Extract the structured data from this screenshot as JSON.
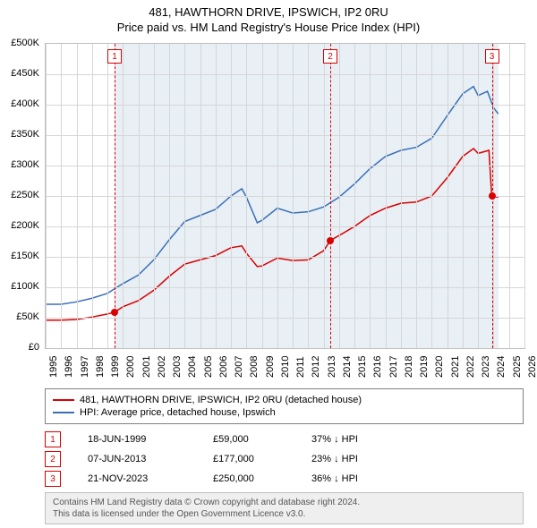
{
  "title": "481, HAWTHORN DRIVE, IPSWICH, IP2 0RU",
  "subtitle": "Price paid vs. HM Land Registry's House Price Index (HPI)",
  "chart": {
    "type": "line",
    "background_color": "#ffffff",
    "plot_border_color": "#bfbfbf",
    "shaded_bg_color": "#e8eff5",
    "shaded_x_start": 1999.46,
    "shaded_x_end": 2024.3,
    "xlim": [
      1995,
      2026
    ],
    "ylim": [
      0,
      500000
    ],
    "y_ticks": [
      0,
      50000,
      100000,
      150000,
      200000,
      250000,
      300000,
      350000,
      400000,
      450000,
      500000
    ],
    "y_tick_labels": [
      "£0",
      "£50K",
      "£100K",
      "£150K",
      "£200K",
      "£250K",
      "£300K",
      "£350K",
      "£400K",
      "£450K",
      "£500K"
    ],
    "x_ticks": [
      1995,
      1996,
      1997,
      1998,
      1999,
      2000,
      2001,
      2002,
      2003,
      2004,
      2005,
      2006,
      2007,
      2008,
      2009,
      2010,
      2011,
      2012,
      2013,
      2014,
      2015,
      2016,
      2017,
      2018,
      2019,
      2020,
      2021,
      2022,
      2023,
      2024,
      2025,
      2026
    ],
    "grid_color": "#d6d6d6",
    "series": [
      {
        "name": "481, HAWTHORN DRIVE, IPSWICH, IP2 0RU (detached house)",
        "color": "#d90000",
        "line_width": 1.5,
        "data": [
          [
            1995,
            46000
          ],
          [
            1996,
            46000
          ],
          [
            1997,
            47000
          ],
          [
            1998,
            51000
          ],
          [
            1999,
            56000
          ],
          [
            1999.46,
            59000
          ],
          [
            2000,
            68000
          ],
          [
            2001,
            78000
          ],
          [
            2002,
            95000
          ],
          [
            2003,
            118000
          ],
          [
            2004,
            138000
          ],
          [
            2005,
            145000
          ],
          [
            2006,
            152000
          ],
          [
            2007,
            165000
          ],
          [
            2007.7,
            168000
          ],
          [
            2008,
            156000
          ],
          [
            2008.7,
            134000
          ],
          [
            2009,
            135000
          ],
          [
            2010,
            148000
          ],
          [
            2011,
            144000
          ],
          [
            2012,
            145000
          ],
          [
            2013,
            160000
          ],
          [
            2013.43,
            177000
          ],
          [
            2014,
            185000
          ],
          [
            2015,
            200000
          ],
          [
            2016,
            218000
          ],
          [
            2017,
            230000
          ],
          [
            2018,
            238000
          ],
          [
            2019,
            240000
          ],
          [
            2020,
            250000
          ],
          [
            2021,
            280000
          ],
          [
            2022,
            315000
          ],
          [
            2022.7,
            328000
          ],
          [
            2023,
            320000
          ],
          [
            2023.7,
            325000
          ],
          [
            2023.88,
            250000
          ],
          [
            2024.3,
            248000
          ]
        ]
      },
      {
        "name": "HPI: Average price, detached house, Ipswich",
        "color": "#3a6fb7",
        "line_width": 1.5,
        "data": [
          [
            1995,
            72000
          ],
          [
            1996,
            72000
          ],
          [
            1997,
            76000
          ],
          [
            1998,
            82000
          ],
          [
            1999,
            90000
          ],
          [
            2000,
            106000
          ],
          [
            2001,
            120000
          ],
          [
            2002,
            145000
          ],
          [
            2003,
            178000
          ],
          [
            2004,
            208000
          ],
          [
            2005,
            218000
          ],
          [
            2006,
            228000
          ],
          [
            2007,
            250000
          ],
          [
            2007.7,
            262000
          ],
          [
            2008,
            248000
          ],
          [
            2008.7,
            206000
          ],
          [
            2009,
            210000
          ],
          [
            2010,
            230000
          ],
          [
            2011,
            222000
          ],
          [
            2012,
            224000
          ],
          [
            2013,
            232000
          ],
          [
            2014,
            248000
          ],
          [
            2015,
            270000
          ],
          [
            2016,
            295000
          ],
          [
            2017,
            315000
          ],
          [
            2018,
            325000
          ],
          [
            2019,
            330000
          ],
          [
            2020,
            345000
          ],
          [
            2021,
            382000
          ],
          [
            2022,
            418000
          ],
          [
            2022.7,
            430000
          ],
          [
            2023,
            415000
          ],
          [
            2023.6,
            422000
          ],
          [
            2024,
            395000
          ],
          [
            2024.3,
            385000
          ]
        ]
      }
    ],
    "markers": [
      {
        "n": "1",
        "x": 1999.46,
        "y": 59000,
        "color": "#d90000"
      },
      {
        "n": "2",
        "x": 2013.43,
        "y": 177000,
        "color": "#d90000"
      },
      {
        "n": "3",
        "x": 2023.89,
        "y": 250000,
        "color": "#d90000"
      }
    ]
  },
  "legend": {
    "border_color": "#808080",
    "items": [
      {
        "color": "#d90000",
        "label": "481, HAWTHORN DRIVE, IPSWICH, IP2 0RU (detached house)"
      },
      {
        "color": "#3a6fb7",
        "label": "HPI: Average price, detached house, Ipswich"
      }
    ]
  },
  "sales": [
    {
      "n": "1",
      "color": "#d90000",
      "date": "18-JUN-1999",
      "price": "£59,000",
      "pct": "37% ↓ HPI"
    },
    {
      "n": "2",
      "color": "#d90000",
      "date": "07-JUN-2013",
      "price": "£177,000",
      "pct": "23% ↓ HPI"
    },
    {
      "n": "3",
      "color": "#d90000",
      "date": "21-NOV-2023",
      "price": "£250,000",
      "pct": "36% ↓ HPI"
    }
  ],
  "footer": {
    "line1": "Contains HM Land Registry data © Crown copyright and database right 2024.",
    "line2": "This data is licensed under the Open Government Licence v3.0."
  }
}
